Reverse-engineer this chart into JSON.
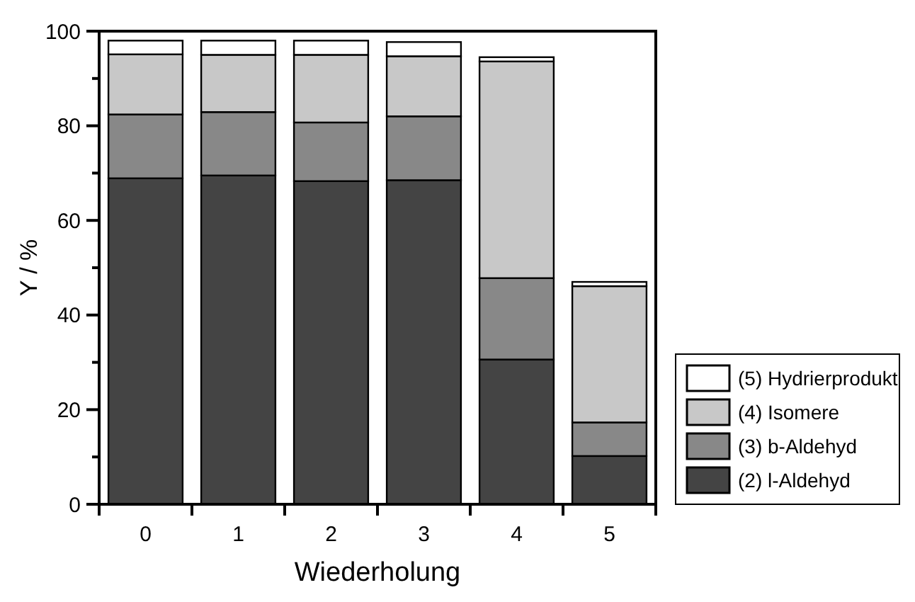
{
  "chart_data": {
    "type": "bar",
    "stacked": true,
    "xlabel": "Wiederholung",
    "ylabel": "Y / %",
    "categories": [
      "0",
      "1",
      "2",
      "3",
      "4",
      "5"
    ],
    "series": [
      {
        "name": "(2) l-Aldehyd",
        "color": "#444444",
        "values": [
          68.9,
          69.5,
          68.3,
          68.5,
          30.6,
          10.2
        ]
      },
      {
        "name": "(3) b-Aldehyd",
        "color": "#888888",
        "values": [
          13.5,
          13.4,
          12.4,
          13.5,
          17.2,
          7.1
        ]
      },
      {
        "name": "(4) Isomere",
        "color": "#c8c8c8",
        "values": [
          12.7,
          12.1,
          14.3,
          12.7,
          45.8,
          28.8
        ]
      },
      {
        "name": "(5) Hydrierprodukt",
        "color": "#ffffff",
        "values": [
          2.9,
          3.0,
          3.0,
          3.0,
          0.9,
          0.9
        ]
      }
    ],
    "ylim": [
      0,
      100
    ],
    "yticks": [
      0,
      {
        "value": 10,
        "label": null
      },
      20,
      {
        "value": 30,
        "label": null
      },
      40,
      {
        "value": 50,
        "label": null
      },
      60,
      {
        "value": 70,
        "label": null
      },
      80,
      {
        "value": 90,
        "label": null
      },
      100
    ],
    "legend": "right",
    "grid": false
  }
}
